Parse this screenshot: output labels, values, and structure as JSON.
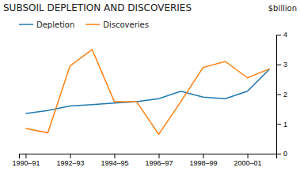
{
  "chart_data": {
    "type": "line",
    "title": "SUBSOIL DEPLETION AND DISCOVERIES",
    "ylabel": "$billion",
    "x": [
      0,
      1,
      2,
      3,
      4,
      5,
      6,
      7,
      8,
      9,
      10,
      11
    ],
    "xlim": [
      -0.3,
      11.3
    ],
    "xticks": [
      {
        "value": 0,
        "label": "1990–91"
      },
      {
        "value": 2,
        "label": "1992–93"
      },
      {
        "value": 4,
        "label": "1994–95"
      },
      {
        "value": 6,
        "label": "1996–97"
      },
      {
        "value": 8,
        "label": "1998–99"
      },
      {
        "value": 10,
        "label": "2000–01"
      }
    ],
    "ylim": [
      0,
      4
    ],
    "yticks": [
      0,
      1,
      2,
      3,
      4
    ],
    "series": [
      {
        "name": "Depletion",
        "values": [
          1.35,
          1.45,
          1.6,
          1.65,
          1.7,
          1.75,
          1.85,
          2.1,
          1.9,
          1.85,
          2.1,
          2.85
        ]
      },
      {
        "name": "Discoveries",
        "values": [
          0.85,
          0.7,
          2.95,
          3.5,
          1.75,
          1.75,
          0.65,
          1.75,
          2.9,
          3.1,
          2.55,
          2.85
        ]
      }
    ],
    "legend": "upper left",
    "grid": false
  }
}
